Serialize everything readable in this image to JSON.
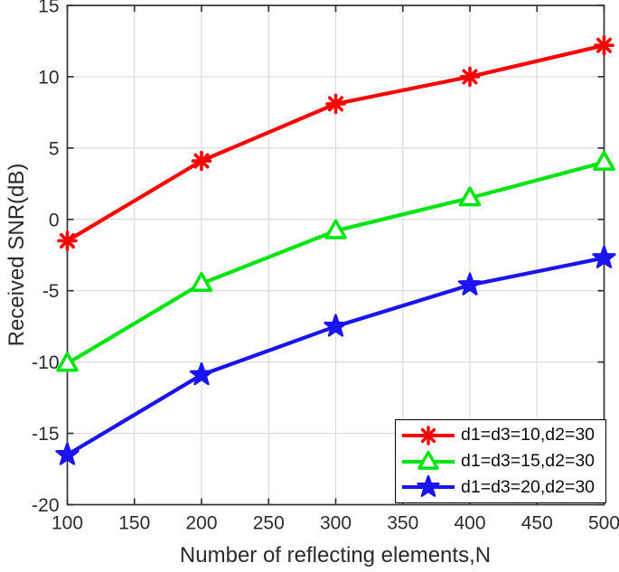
{
  "chart_data": {
    "type": "line",
    "title": "",
    "xlabel": "Number of reflecting elements,N",
    "ylabel": "Received SNR(dB)",
    "xlim": [
      100,
      500
    ],
    "ylim": [
      -20,
      15
    ],
    "xticks": [
      100,
      150,
      200,
      250,
      300,
      350,
      400,
      450,
      500
    ],
    "yticks": [
      -20,
      -15,
      -10,
      -5,
      0,
      5,
      10,
      15
    ],
    "grid": true,
    "legend_position": "lower right",
    "x": [
      100,
      200,
      300,
      400,
      500
    ],
    "series": [
      {
        "name": "d1=d3=10,d2=30",
        "color": "#ff0000",
        "marker": "asterisk",
        "values": [
          -1.5,
          4.1,
          8.1,
          10.0,
          12.2
        ]
      },
      {
        "name": "d1=d3=15,d2=30",
        "color": "#00e412",
        "marker": "triangle",
        "values": [
          -10.1,
          -4.5,
          -0.8,
          1.5,
          4.0
        ]
      },
      {
        "name": "d1=d3=20,d2=30",
        "color": "#1a14f0",
        "marker": "star",
        "values": [
          -16.5,
          -10.9,
          -7.5,
          -4.6,
          -2.7
        ]
      }
    ],
    "colors": {
      "grid": "#dcdcdc",
      "axis": "#333333",
      "tick_text": "#2b2b2b",
      "legend_border": "#000000",
      "background": "#ffffff"
    }
  }
}
